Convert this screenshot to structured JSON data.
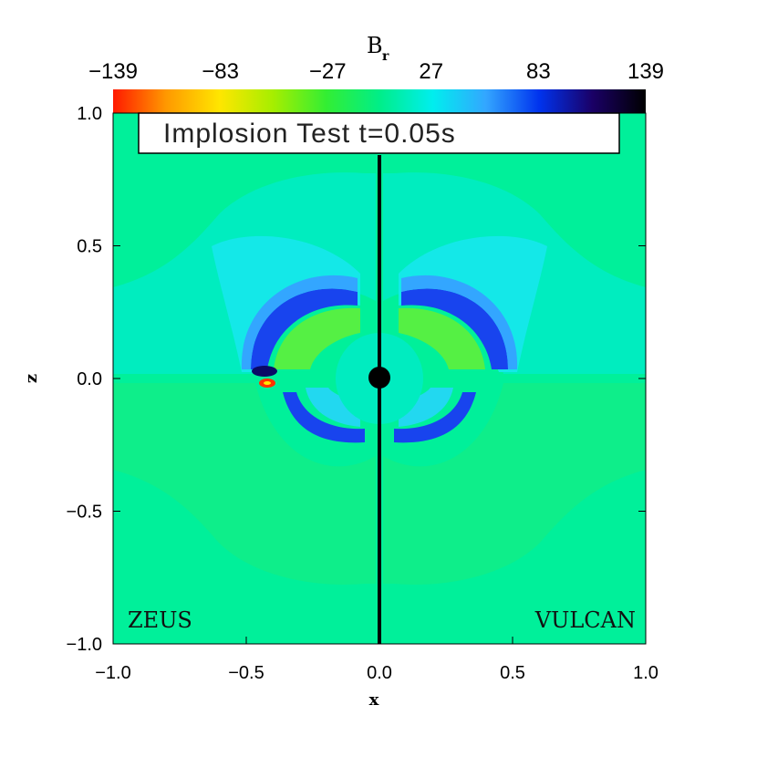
{
  "chart_data": {
    "type": "heatmap",
    "title": "Implosion Test t=0.05s",
    "xlabel": "x",
    "ylabel": "z",
    "xlim": [
      -1.0,
      1.0
    ],
    "ylim": [
      -1.0,
      1.0
    ],
    "x_ticks": [
      "−1.0",
      "−0.5",
      "0.0",
      "0.5",
      "1.0"
    ],
    "y_ticks": [
      "−1.0",
      "−0.5",
      "0.0",
      "0.5",
      "1.0"
    ],
    "x_tick_values": [
      -1.0,
      -0.5,
      0.0,
      0.5,
      1.0
    ],
    "y_tick_values": [
      -1.0,
      -0.5,
      0.0,
      0.5,
      1.0
    ],
    "colorbar": {
      "title": "B",
      "title_subscript": "r",
      "range": [
        -139,
        139
      ],
      "ticks": [
        "−139",
        "−83",
        "−27",
        "27",
        "83",
        "139"
      ],
      "tick_values": [
        -139,
        -83,
        -27,
        27,
        83,
        139
      ],
      "colors": [
        "#ff1a00",
        "#ff9900",
        "#ffe600",
        "#a6ee00",
        "#33ee33",
        "#00ee88",
        "#00eeee",
        "#33a6ff",
        "#0033ee",
        "#1a0066",
        "#000000"
      ]
    },
    "panels": {
      "left": "ZEUS",
      "right": "VULCAN"
    },
    "background_value": 5,
    "colors": {
      "background": "#00f09a",
      "cyan": "#00ffee",
      "light_cyan": "#22e8e0",
      "blue": "#1133ee",
      "dark_blue": "#0a0a66",
      "green": "#33ee44",
      "yellow_green": "#66f033",
      "red": "#ff2200",
      "star": "#000000"
    }
  }
}
